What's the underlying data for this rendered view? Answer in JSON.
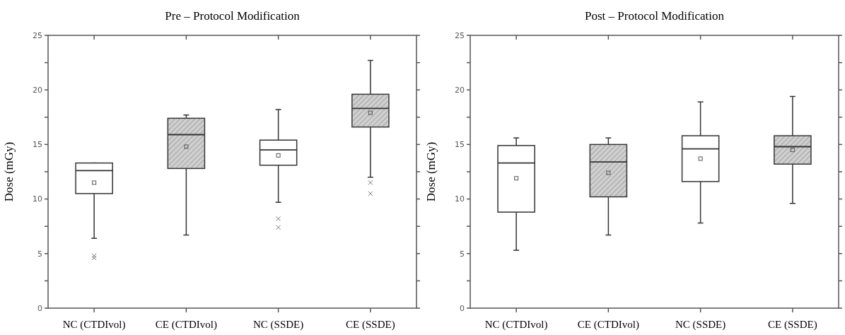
{
  "chart_data": [
    {
      "type": "box",
      "title": "Pre – Protocol Modification",
      "ylabel": "Dose (mGy)",
      "categories": [
        "NC (CTDIvol)",
        "CE (CTDIvol)",
        "NC (SSDE)",
        "CE (SSDE)"
      ],
      "colors": [
        "#ffffff",
        "#cfcfcf",
        "#ffffff",
        "#cfcfcf"
      ],
      "ylim": [
        0,
        25
      ],
      "yticks": [
        0,
        {
          "value": 2.5,
          "label": null
        },
        5,
        {
          "value": 7.5,
          "label": null
        },
        10,
        {
          "value": 12.5,
          "label": null
        },
        15,
        {
          "value": 17.5,
          "label": null
        },
        20,
        {
          "value": 22.5,
          "label": null
        },
        25
      ],
      "grid": false,
      "boxes": [
        {
          "low": 6.4,
          "q1": 10.5,
          "median": 12.6,
          "q3": 13.3,
          "high": 13.3,
          "mean": 11.5,
          "outliers": [
            4.8,
            4.6
          ]
        },
        {
          "low": 6.7,
          "q1": 12.8,
          "median": 15.9,
          "q3": 17.4,
          "high": 17.7,
          "mean": 14.8
        },
        {
          "low": 9.7,
          "q1": 13.1,
          "median": 14.5,
          "q3": 15.4,
          "high": 18.2,
          "mean": 14.0,
          "outliers": [
            8.2,
            7.4
          ]
        },
        {
          "low": 12.0,
          "q1": 16.6,
          "median": 18.3,
          "q3": 19.6,
          "high": 22.7,
          "mean": 17.9,
          "outliers": [
            11.5,
            10.5
          ]
        }
      ]
    },
    {
      "type": "box",
      "title": "Post – Protocol Modification",
      "ylabel": "Dose (mGy)",
      "categories": [
        "NC (CTDIvol)",
        "CE (CTDIvol)",
        "NC (SSDE)",
        "CE (SSDE)"
      ],
      "colors": [
        "#ffffff",
        "#cfcfcf",
        "#ffffff",
        "#cfcfcf"
      ],
      "ylim": [
        0,
        25
      ],
      "yticks": [
        0,
        {
          "value": 2.5,
          "label": null
        },
        5,
        {
          "value": 7.5,
          "label": null
        },
        10,
        {
          "value": 12.5,
          "label": null
        },
        15,
        {
          "value": 17.5,
          "label": null
        },
        20,
        {
          "value": 22.5,
          "label": null
        },
        25
      ],
      "grid": false,
      "boxes": [
        {
          "low": 5.3,
          "q1": 8.8,
          "median": 13.3,
          "q3": 14.9,
          "high": 15.6,
          "mean": 11.9
        },
        {
          "low": 6.7,
          "q1": 10.2,
          "median": 13.4,
          "q3": 15.0,
          "high": 15.6,
          "mean": 12.4
        },
        {
          "low": 7.8,
          "q1": 11.6,
          "median": 14.6,
          "q3": 15.8,
          "high": 18.9,
          "mean": 13.7
        },
        {
          "low": 9.6,
          "q1": 13.2,
          "median": 14.8,
          "q3": 15.8,
          "high": 19.4,
          "mean": 14.5
        }
      ]
    }
  ]
}
